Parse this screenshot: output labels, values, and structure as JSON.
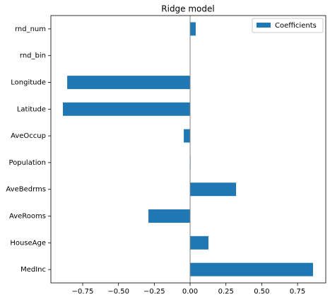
{
  "chart_data": {
    "type": "barh",
    "title": "Ridge model",
    "categories": [
      "MedInc",
      "HouseAge",
      "AveRooms",
      "AveBedrms",
      "Population",
      "AveOccup",
      "Latitude",
      "Longitude",
      "rnd_bin",
      "rnd_num"
    ],
    "series": [
      {
        "name": "Coefficients",
        "color": "#1f77b4",
        "values": [
          0.858,
          0.128,
          -0.291,
          0.321,
          0.003,
          -0.044,
          -0.888,
          -0.858,
          0,
          0.039
        ]
      }
    ],
    "xlim": [
      -0.972,
      0.947
    ],
    "xticks": [
      {
        "value": -0.75,
        "label": "−0.75"
      },
      {
        "value": -0.5,
        "label": "−0.50"
      },
      {
        "value": -0.25,
        "label": "−0.25"
      },
      {
        "value": 0,
        "label": "0.00"
      },
      {
        "value": 0.25,
        "label": "0.25"
      },
      {
        "value": 0.5,
        "label": "0.50"
      },
      {
        "value": 0.75,
        "label": "0.75"
      }
    ],
    "zero_line": true,
    "legend": "upper right"
  }
}
